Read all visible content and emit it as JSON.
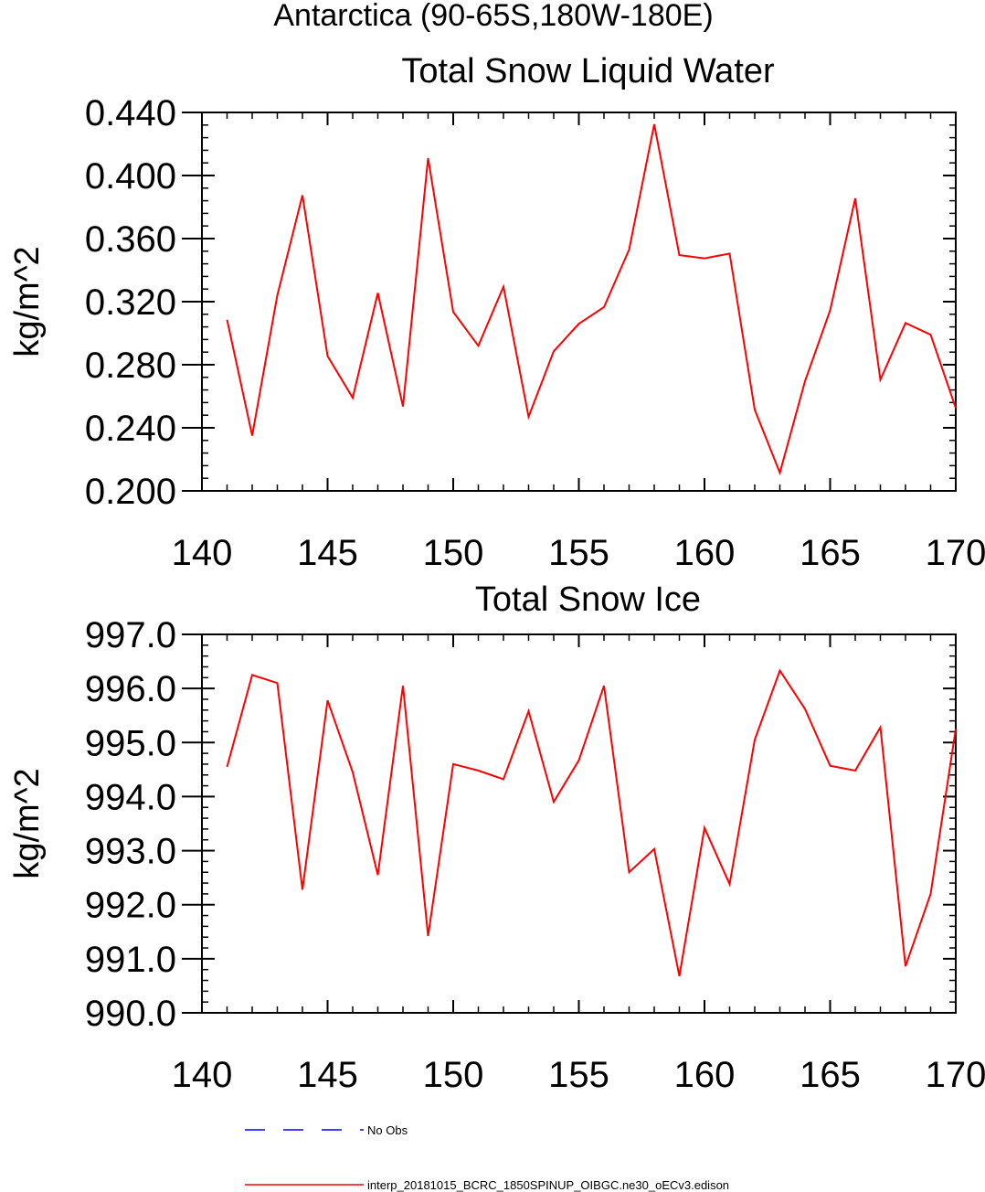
{
  "header": {
    "region_title": "Antarctica (90-65S,180W-180E)"
  },
  "chart_data": [
    {
      "type": "line",
      "title": "Total Snow Liquid Water",
      "ylabel": "kg/m^2",
      "xlabel": "",
      "xlim": [
        140,
        170
      ],
      "ylim": [
        0.2,
        0.44
      ],
      "xticks": [
        "140",
        "145",
        "150",
        "155",
        "160",
        "165",
        "170"
      ],
      "yticks": [
        "0.200",
        "0.240",
        "0.280",
        "0.320",
        "0.360",
        "0.400",
        "0.440"
      ],
      "x": [
        141,
        142,
        143,
        144,
        145,
        146,
        147,
        148,
        149,
        150,
        151,
        152,
        153,
        154,
        155,
        156,
        157,
        158,
        159,
        160,
        161,
        162,
        163,
        164,
        165,
        166,
        167,
        168,
        169,
        170
      ],
      "series": [
        {
          "name": "interp_20181015_BCRC_1850SPINUP_OIBGC.ne30_oECv3.edison",
          "color": "#ff0000",
          "values": [
            0.3085,
            0.235,
            0.324,
            0.3875,
            0.2855,
            0.259,
            0.3255,
            0.2535,
            0.411,
            0.3135,
            0.292,
            0.3295,
            0.247,
            0.2885,
            0.306,
            0.3165,
            0.353,
            0.4325,
            0.3495,
            0.3475,
            0.3505,
            0.2515,
            0.2115,
            0.2695,
            0.3145,
            0.3855,
            0.2705,
            0.3065,
            0.299,
            0.2525
          ]
        }
      ]
    },
    {
      "type": "line",
      "title": "Total Snow Ice",
      "ylabel": "kg/m^2",
      "xlabel": "",
      "xlim": [
        140,
        170
      ],
      "ylim": [
        990.0,
        997.0
      ],
      "xticks": [
        "140",
        "145",
        "150",
        "155",
        "160",
        "165",
        "170"
      ],
      "yticks": [
        "990.0",
        "991.0",
        "992.0",
        "993.0",
        "994.0",
        "995.0",
        "996.0",
        "997.0"
      ],
      "x": [
        141,
        142,
        143,
        144,
        145,
        146,
        147,
        148,
        149,
        150,
        151,
        152,
        153,
        154,
        155,
        156,
        157,
        158,
        159,
        160,
        161,
        162,
        163,
        164,
        165,
        166,
        167,
        168,
        169,
        170
      ],
      "series": [
        {
          "name": "interp_20181015_BCRC_1850SPINUP_OIBGC.ne30_oECv3.edison",
          "color": "#ff0000",
          "values": [
            994.55,
            996.25,
            996.1,
            992.28,
            995.78,
            994.45,
            992.55,
            996.05,
            991.42,
            994.6,
            994.48,
            994.32,
            995.58,
            993.9,
            994.67,
            996.05,
            992.6,
            993.03,
            990.68,
            993.42,
            992.38,
            995.05,
            996.33,
            995.62,
            994.57,
            994.48,
            995.28,
            990.86,
            992.2,
            995.25
          ]
        }
      ]
    }
  ],
  "legend": [
    {
      "label": "No Obs",
      "color": "#0000ff",
      "dash": "dashed"
    },
    {
      "label": "interp_20181015_BCRC_1850SPINUP_OIBGC.ne30_oECv3.edison",
      "color": "#ff0000",
      "dash": "solid"
    }
  ]
}
